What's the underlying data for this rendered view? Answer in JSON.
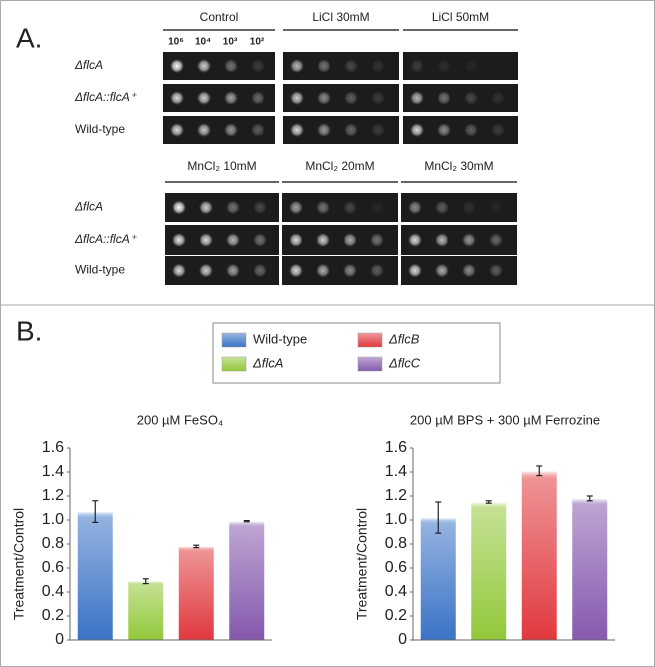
{
  "panel_a": {
    "label": "A.",
    "groups": [
      {
        "conditions": [
          "Control",
          "LiCl 30mM",
          "LiCl 50mM"
        ]
      },
      {
        "conditions": [
          "MnCl₂ 10mM",
          "MnCl₂ 20mM",
          "MnCl₂ 30mM"
        ]
      }
    ],
    "dilutions": [
      "10⁶",
      "10⁴",
      "10³",
      "10²"
    ],
    "strains": [
      "ΔflcA",
      "ΔflcA::flcA⁺",
      "Wild-type"
    ]
  },
  "panel_b": {
    "label": "B."
  },
  "chart_data": [
    {
      "type": "bar",
      "title": "200 µM FeSO₄",
      "ylabel": "Treatment/Control",
      "series": [
        {
          "name": "Wild-type",
          "color": "#3a73c6",
          "values": [
            1.07
          ],
          "errors": [
            0.09
          ]
        },
        {
          "name": "ΔflcA",
          "color": "#93c83a",
          "values": [
            0.49
          ],
          "errors": [
            0.02
          ]
        },
        {
          "name": "ΔflcB",
          "color": "#e0393e",
          "values": [
            0.78
          ],
          "errors": [
            0.01
          ]
        },
        {
          "name": "ΔflcC",
          "color": "#8559ad",
          "values": [
            0.99
          ],
          "errors": [
            0.005
          ]
        }
      ],
      "ylim": [
        0,
        1.6
      ],
      "yticks": [
        0,
        0.2,
        0.4,
        0.6,
        0.8,
        {
          "value": 1,
          "label": "1.0"
        },
        1.2,
        1.4,
        1.6
      ]
    },
    {
      "type": "bar",
      "title": "200 µM BPS + 300 µM Ferrozine",
      "ylabel": "Treatment/Control",
      "series": [
        {
          "color": "#3a73c6",
          "values": [
            1.02
          ],
          "errors": [
            0.13
          ]
        },
        {
          "color": "#93c83a",
          "values": [
            1.15
          ],
          "errors": [
            0.01
          ]
        },
        {
          "color": "#e0393e",
          "values": [
            1.41
          ],
          "errors": [
            0.04
          ]
        },
        {
          "color": "#8559ad",
          "values": [
            1.18
          ],
          "errors": [
            0.02
          ]
        }
      ],
      "ylim": [
        0,
        1.6
      ],
      "yticks": [
        0,
        0.2,
        0.4,
        0.6,
        0.8,
        {
          "value": 1,
          "label": "1.0"
        },
        1.2,
        1.4,
        1.6
      ]
    }
  ]
}
